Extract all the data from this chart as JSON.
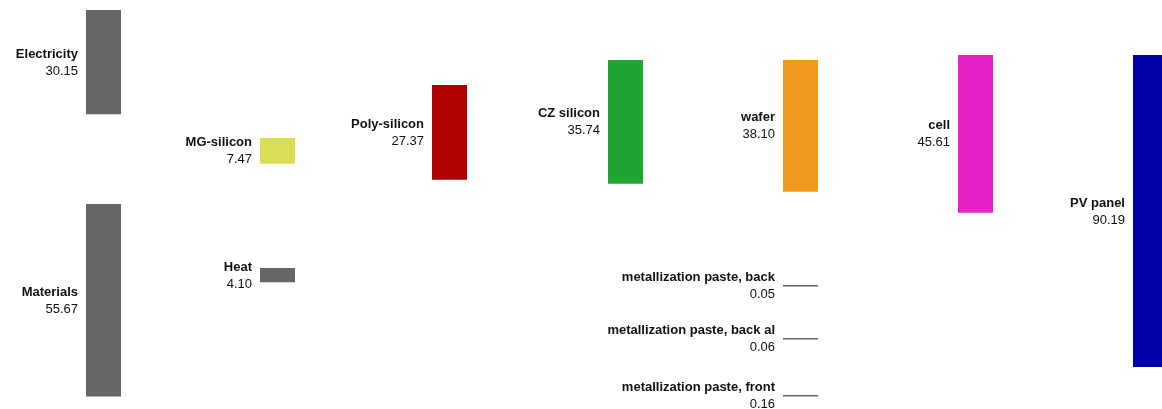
{
  "chart_data": {
    "type": "other",
    "categories": [
      "Electricity",
      "Materials",
      "MG-silicon",
      "Heat",
      "Poly-silicon",
      "CZ silicon",
      "wafer",
      "cell",
      "metallization paste, back",
      "metallization paste, back al",
      "metallization paste, front",
      "PV panel"
    ],
    "values": [
      30.15,
      55.67,
      7.47,
      4.1,
      27.37,
      35.74,
      38.1,
      45.61,
      0.05,
      0.06,
      0.16,
      90.19
    ],
    "value_labels": [
      "30.15",
      "55.67",
      "7.47",
      "4.10",
      "27.37",
      "35.74",
      "38.10",
      "45.61",
      "0.05",
      "0.06",
      "0.16",
      "90.19"
    ],
    "colors": [
      "#666666",
      "#666666",
      "#d9de55",
      "#666666",
      "#b00000",
      "#1ea534",
      "#f09a1e",
      "#e622c8",
      "#666666",
      "#666666",
      "#666666",
      "#0000a8"
    ]
  }
}
